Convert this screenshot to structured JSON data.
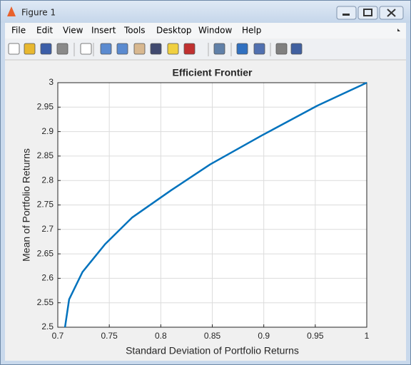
{
  "window": {
    "title": "Figure 1"
  },
  "menu": [
    "File",
    "Edit",
    "View",
    "Insert",
    "Tools",
    "Desktop",
    "Window",
    "Help"
  ],
  "chart_data": {
    "type": "line",
    "title": "Efficient Frontier",
    "x_label": "Standard Deviation of Portfolio Returns",
    "y_label": "Mean of Portfolio Returns",
    "x": [
      0.707,
      0.711,
      0.724,
      0.746,
      0.772,
      0.81,
      0.848,
      0.898,
      0.952,
      1
    ],
    "series": [
      {
        "color": "#0072bd",
        "values": [
          2.5,
          2.557,
          2.613,
          2.67,
          2.724,
          2.78,
          2.833,
          2.892,
          2.953,
          3
        ]
      }
    ],
    "xlim": [
      0.7,
      1
    ],
    "xticks": [
      0.7,
      0.75,
      0.8,
      0.85,
      0.9,
      0.95,
      1
    ],
    "ylim": [
      2.5,
      3
    ],
    "yticks": [
      2.5,
      2.55,
      2.6,
      2.65,
      2.7,
      2.75,
      2.8,
      2.85,
      2.9,
      2.95,
      3
    ],
    "grid": true
  }
}
